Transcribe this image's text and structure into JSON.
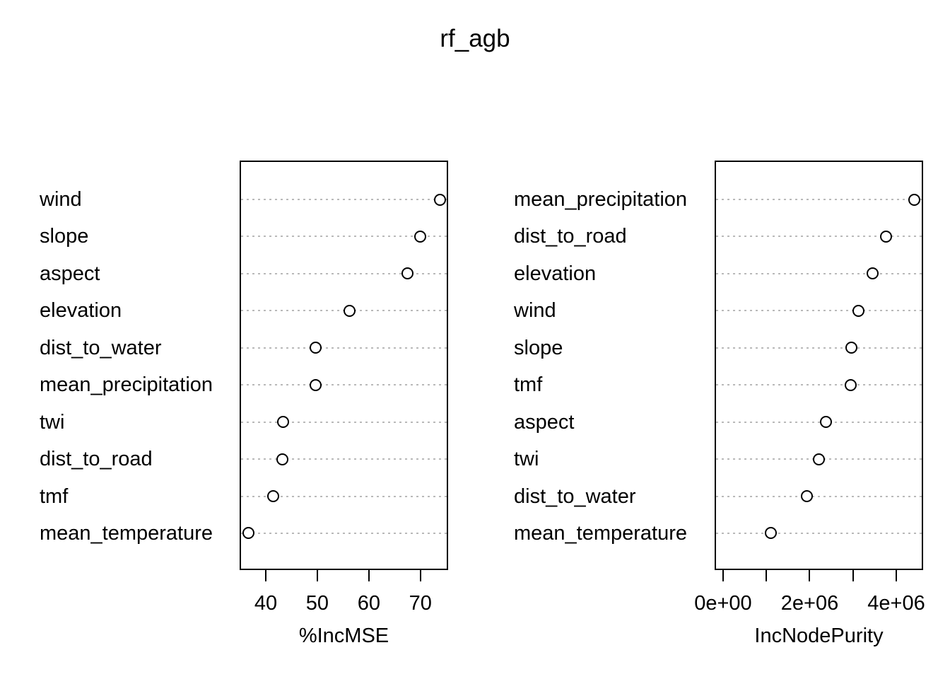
{
  "title": "rf_agb",
  "colors": {
    "background": "#ffffff",
    "text": "#000000",
    "panel_border": "#000000",
    "gridline": "#b9b9b9",
    "dot_stroke": "#000000",
    "dot_fill": "#ffffff"
  },
  "chart_data": [
    {
      "type": "scatter",
      "subtype": "dotchart",
      "title": "",
      "xlabel": "%IncMSE",
      "ylabel": "",
      "legend": "none",
      "grid": "dotted-horizontal",
      "categories": [
        "wind",
        "slope",
        "aspect",
        "elevation",
        "dist_to_water",
        "mean_precipitation",
        "twi",
        "dist_to_road",
        "tmf",
        "mean_temperature"
      ],
      "values": [
        73.8,
        70.0,
        67.5,
        56.3,
        49.7,
        49.6,
        43.3,
        43.2,
        41.5,
        36.7
      ],
      "xlim": [
        35.2,
        75.1
      ],
      "xticks": [
        {
          "value": 40,
          "label": "40"
        },
        {
          "value": 50,
          "label": "50"
        },
        {
          "value": 60,
          "label": "60"
        },
        {
          "value": 70,
          "label": "70"
        }
      ]
    },
    {
      "type": "scatter",
      "subtype": "dotchart",
      "title": "",
      "xlabel": "IncNodePurity",
      "ylabel": "",
      "legend": "none",
      "grid": "dotted-horizontal",
      "categories": [
        "mean_precipitation",
        "dist_to_road",
        "elevation",
        "wind",
        "slope",
        "tmf",
        "aspect",
        "twi",
        "dist_to_water",
        "mean_temperature"
      ],
      "values": [
        4410000,
        3770000,
        3460000,
        3130000,
        2970000,
        2950000,
        2370000,
        2220000,
        1940000,
        1110000
      ],
      "xlim": [
        -163000,
        4588000
      ],
      "xticks": [
        {
          "value": 0,
          "label": "0e+00"
        },
        {
          "value": 1000000,
          "label": ""
        },
        {
          "value": 2000000,
          "label": "2e+06"
        },
        {
          "value": 3000000,
          "label": ""
        },
        {
          "value": 4000000,
          "label": "4e+06"
        }
      ]
    }
  ]
}
